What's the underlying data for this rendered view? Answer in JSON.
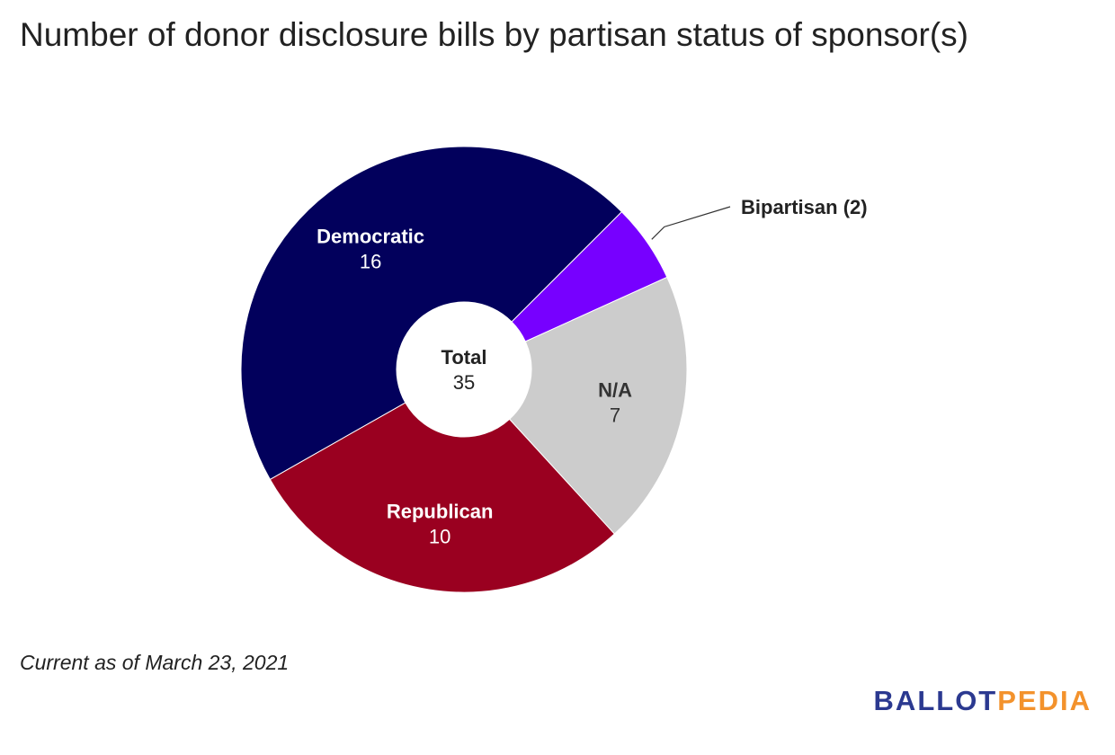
{
  "title": "Number of donor disclosure bills by partisan status of sponsor(s)",
  "note": "Current as of March 23, 2021",
  "logo": {
    "part1": "BALLOT",
    "part2": "PEDIA"
  },
  "chart_data": {
    "type": "pie",
    "style": "donut",
    "title": "Number of donor disclosure bills by partisan status of sponsor(s)",
    "center_label": "Total",
    "center_value": "35",
    "slices": [
      {
        "label": "Bipartisan",
        "value": 2,
        "color": "#7700ff",
        "display": "Bipartisan (2)",
        "label_position": "outside"
      },
      {
        "label": "N/A",
        "value": 7,
        "color": "#cccccc",
        "display_value": "7",
        "text_color": "#333333"
      },
      {
        "label": "Republican",
        "value": 10,
        "color": "#9a0020",
        "display_value": "10",
        "text_color": "#ffffff"
      },
      {
        "label": "Democratic",
        "value": 16,
        "color": "#02005c",
        "display_value": "16",
        "text_color": "#ffffff"
      }
    ]
  }
}
